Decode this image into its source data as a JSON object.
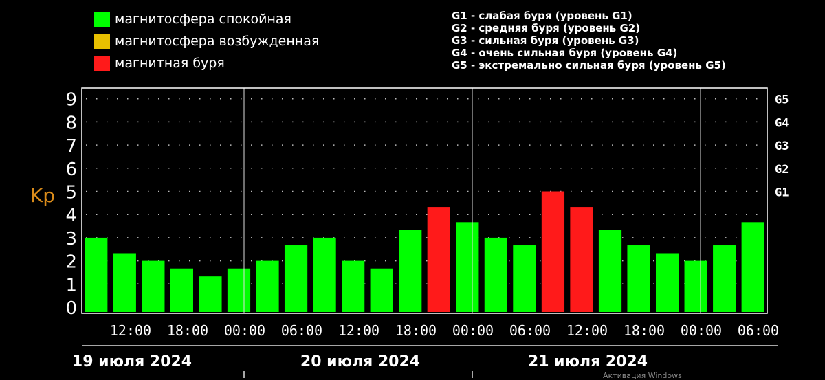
{
  "legend": {
    "items": [
      {
        "label": "магнитосфера спокойная",
        "color": "#00ff00"
      },
      {
        "label": "магнитосфера возбужденная",
        "color": "#e8c000"
      },
      {
        "label": "магнитная буря",
        "color": "#ff1a1a"
      }
    ]
  },
  "storm_levels": [
    "G1 - слабая буря (уровень G1)",
    "G2 - средняя буря (уровень G2)",
    "G3 - сильная буря (уровень G3)",
    "G4 - очень сильная буря (уровень G4)",
    "G5 - экстремально сильная буря (уровень G5)"
  ],
  "watermark": "Активация Windows",
  "chart_data": {
    "type": "bar",
    "ylabel": "Kp",
    "ylim": [
      0,
      9
    ],
    "yticks": [
      "0",
      "1",
      "2",
      "3",
      "4",
      "5",
      "6",
      "7",
      "8",
      "9"
    ],
    "right_labels": [
      {
        "value": 5,
        "label": "G1"
      },
      {
        "value": 6,
        "label": "G2"
      },
      {
        "value": 7,
        "label": "G3"
      },
      {
        "value": 8,
        "label": "G4"
      },
      {
        "value": 9,
        "label": "G5"
      }
    ],
    "xtick_labels": [
      "12:00",
      "18:00",
      "00:00",
      "06:00",
      "12:00",
      "18:00",
      "00:00",
      "06:00",
      "12:00",
      "18:00",
      "00:00",
      "06:00"
    ],
    "days": [
      "19 июля 2024",
      "20 июля 2024",
      "21 июля 2024"
    ],
    "values": [
      3.0,
      2.33,
      2.0,
      1.67,
      1.33,
      1.67,
      2.0,
      2.67,
      3.0,
      2.0,
      1.67,
      3.33,
      4.33,
      3.67,
      3.0,
      2.67,
      5.0,
      4.33,
      3.33,
      2.67,
      2.33,
      2.0,
      2.67,
      3.67
    ],
    "colors": [
      "green",
      "green",
      "green",
      "green",
      "green",
      "green",
      "green",
      "green",
      "green",
      "green",
      "green",
      "green",
      "red",
      "green",
      "green",
      "green",
      "red",
      "red",
      "green",
      "green",
      "green",
      "green",
      "green",
      "green"
    ],
    "color_map": {
      "green": "#00ff00",
      "yellow": "#e8c000",
      "red": "#ff1a1a"
    },
    "axis_color": "#ffffff",
    "label_color": "#d98b1a"
  }
}
